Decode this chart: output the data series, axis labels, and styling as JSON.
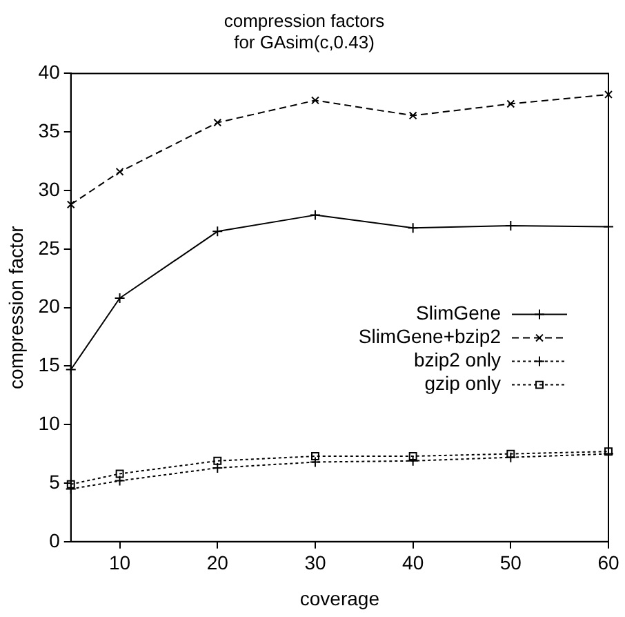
{
  "chart_data": {
    "type": "line",
    "title": "compression factors\nfor GAsim(c,0.43)",
    "xlabel": "coverage",
    "ylabel": "compression factor",
    "x": [
      5,
      10,
      20,
      30,
      40,
      50,
      60
    ],
    "xlim": [
      5,
      60
    ],
    "xticks": [
      10,
      20,
      30,
      40,
      50,
      60
    ],
    "ylim": [
      0,
      40
    ],
    "yticks": [
      0,
      5,
      10,
      15,
      20,
      25,
      30,
      35,
      40
    ],
    "grid": false,
    "legend": "right",
    "series": [
      {
        "name": "SlimGene",
        "color": "#000000",
        "marker": "cross",
        "line_style": "solid",
        "values": [
          14.7,
          20.8,
          26.5,
          27.9,
          26.8,
          27.0,
          26.9
        ]
      },
      {
        "name": "SlimGene+bzip2",
        "color": "#000000",
        "marker": "crossRot",
        "line_style": "dashed",
        "values": [
          28.8,
          31.6,
          35.8,
          37.7,
          36.4,
          37.4,
          38.2
        ]
      },
      {
        "name": "bzip2 only",
        "color": "#000000",
        "marker": "cross",
        "line_style": "dotted",
        "values": [
          4.5,
          5.2,
          6.3,
          6.8,
          6.9,
          7.2,
          7.5
        ]
      },
      {
        "name": "gzip only",
        "color": "#000000",
        "marker": "square",
        "line_style": "dotted",
        "values": [
          4.9,
          5.8,
          6.9,
          7.3,
          7.3,
          7.5,
          7.7
        ]
      }
    ]
  }
}
